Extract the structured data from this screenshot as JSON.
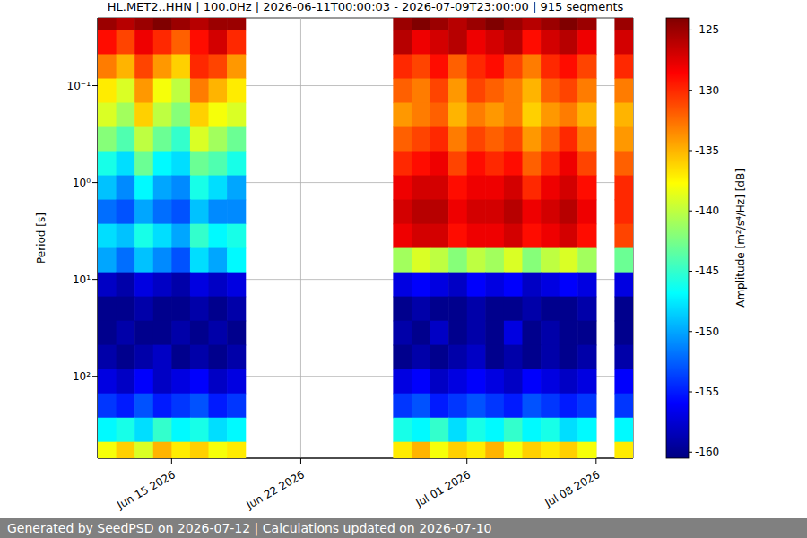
{
  "chart_data": {
    "type": "heatmap",
    "title": "HL.MET2..HHN | 100.0Hz | 2026-06-11T00:00:03 - 2026-07-09T23:00:00 | 915 segments",
    "y_label": "Period [s]",
    "footer": "Generated by SeedPSD on 2026-07-12 | Calculations updated on 2026-07-10",
    "log": "y",
    "grid": true,
    "xlim": [
      "2026-06-11",
      "2026-07-10"
    ],
    "xticks": [
      {
        "value": "2026-06-15",
        "label": "Jun 15 2026"
      },
      {
        "value": "2026-06-22",
        "label": "Jun 22 2026"
      },
      {
        "value": "2026-07-01",
        "label": "Jul 01 2026"
      },
      {
        "value": "2026-07-08",
        "label": "Jul 08 2026"
      }
    ],
    "ylim": [
      0.02,
      700
    ],
    "yticks": [
      {
        "value": 0.1,
        "label": "10⁻¹"
      },
      {
        "value": 1,
        "label": "10⁰"
      },
      {
        "value": 10,
        "label": "10¹"
      },
      {
        "value": 100,
        "label": "10²"
      }
    ],
    "colorbar": {
      "label": "Amplitude [m²/s⁴/Hz] [dB]",
      "range": [
        -160.5,
        -124
      ],
      "ticks": [
        -160,
        -155,
        -150,
        -145,
        -140,
        -135,
        -130,
        -125
      ]
    },
    "cells": {
      "x": [
        "2026-06-11",
        "2026-06-12",
        "2026-06-13",
        "2026-06-14",
        "2026-06-15",
        "2026-06-16",
        "2026-06-17",
        "2026-06-18",
        "2026-06-19",
        "2026-06-20",
        "2026-06-21",
        "2026-06-22",
        "2026-06-23",
        "2026-06-24",
        "2026-06-25",
        "2026-06-26",
        "2026-06-27",
        "2026-06-28",
        "2026-06-29",
        "2026-06-30",
        "2026-07-01",
        "2026-07-02",
        "2026-07-03",
        "2026-07-04",
        "2026-07-05",
        "2026-07-06",
        "2026-07-07",
        "2026-07-08",
        "2026-07-09"
      ],
      "periods": [
        0.02,
        0.0356,
        0.0632,
        0.1125,
        0.2,
        0.356,
        0.632,
        1.125,
        2,
        3.56,
        6.32,
        11.25,
        20,
        35.6,
        63.2,
        112.5,
        200,
        356,
        632
      ],
      "values": [
        [
          -125,
          -126,
          -125,
          -124,
          -125,
          -126,
          -125,
          -125,
          null,
          null,
          null,
          null,
          null,
          null,
          null,
          null,
          -125,
          -124,
          -125,
          -126,
          -125,
          -124,
          -125,
          -126,
          -125,
          -124,
          -125,
          null,
          -125
        ],
        [
          -129,
          -131,
          -128,
          -130,
          -132,
          -129,
          -127,
          -130,
          null,
          null,
          null,
          null,
          null,
          null,
          null,
          null,
          -126,
          -128,
          -127,
          -126,
          -128,
          -127,
          -126,
          -129,
          -127,
          -126,
          -128,
          null,
          -127
        ],
        [
          -133,
          -135,
          -131,
          -134,
          -136,
          -130,
          -131,
          -134,
          null,
          null,
          null,
          null,
          null,
          null,
          null,
          null,
          -130,
          -131,
          -129,
          -132,
          -130,
          -129,
          -131,
          -133,
          -130,
          -129,
          -131,
          null,
          -130
        ],
        [
          -137,
          -139,
          -134,
          -138,
          -140,
          -133,
          -135,
          -137,
          null,
          null,
          null,
          null,
          null,
          null,
          null,
          null,
          -132,
          -133,
          -131,
          -134,
          -131,
          -132,
          -133,
          -135,
          -132,
          -131,
          -133,
          null,
          -133
        ],
        [
          -139,
          -141,
          -136,
          -140,
          -142,
          -136,
          -138,
          -139,
          null,
          null,
          null,
          null,
          null,
          null,
          null,
          null,
          -134,
          -133,
          -132,
          -135,
          -133,
          -134,
          -133,
          -136,
          -134,
          -133,
          -135,
          null,
          -135
        ],
        [
          -142,
          -144,
          -140,
          -143,
          -145,
          -139,
          -141,
          -143,
          null,
          null,
          null,
          null,
          null,
          null,
          null,
          null,
          -132,
          -131,
          -130,
          -133,
          -131,
          -132,
          -131,
          -134,
          -132,
          -130,
          -133,
          null,
          -134
        ],
        [
          -146,
          -148,
          -143,
          -147,
          -148,
          -143,
          -144,
          -146,
          null,
          null,
          null,
          null,
          null,
          null,
          null,
          null,
          -130,
          -129,
          -128,
          -131,
          -129,
          -130,
          -129,
          -132,
          -130,
          -128,
          -131,
          null,
          -132
        ],
        [
          -149,
          -151,
          -147,
          -150,
          -151,
          -146,
          -148,
          -150,
          null,
          null,
          null,
          null,
          null,
          null,
          null,
          null,
          -128,
          -127,
          -127,
          -129,
          -128,
          -128,
          -127,
          -130,
          -128,
          -127,
          -129,
          null,
          -130
        ],
        [
          -152,
          -153,
          -150,
          -152,
          -153,
          -149,
          -151,
          -151,
          null,
          null,
          null,
          null,
          null,
          null,
          null,
          null,
          -127,
          -126,
          -126,
          -128,
          -127,
          -127,
          -126,
          -128,
          -127,
          -126,
          -128,
          null,
          -130
        ],
        [
          -148,
          -149,
          -146,
          -148,
          -150,
          -145,
          -147,
          -146,
          null,
          null,
          null,
          null,
          null,
          null,
          null,
          null,
          -128,
          -127,
          -127,
          -129,
          -128,
          -128,
          -127,
          -129,
          -128,
          -127,
          -129,
          null,
          -131
        ],
        [
          -150,
          -152,
          -149,
          -151,
          -153,
          -148,
          -150,
          -147,
          null,
          null,
          null,
          null,
          null,
          null,
          null,
          null,
          -141,
          -139,
          -140,
          -142,
          -140,
          -141,
          -139,
          -142,
          -140,
          -139,
          -141,
          null,
          -143
        ],
        [
          -158,
          -159,
          -157,
          -158,
          -159,
          -157,
          -158,
          -157,
          null,
          null,
          null,
          null,
          null,
          null,
          null,
          null,
          -157,
          -156,
          -157,
          -158,
          -156,
          -157,
          -156,
          -158,
          -157,
          -156,
          -157,
          null,
          -157
        ],
        [
          -160,
          -160,
          -159,
          -160,
          -160,
          -159,
          -160,
          -159,
          null,
          null,
          null,
          null,
          null,
          null,
          null,
          null,
          -160,
          -159,
          -160,
          -160,
          -159,
          -160,
          -160,
          -159,
          -160,
          -160,
          -159,
          null,
          -160
        ],
        [
          -160,
          -159,
          -160,
          -160,
          -159,
          -160,
          -159,
          -160,
          null,
          null,
          null,
          null,
          null,
          null,
          null,
          null,
          -159,
          -160,
          -158,
          -160,
          -159,
          -160,
          -157,
          -160,
          -159,
          -160,
          -160,
          null,
          -160
        ],
        [
          -159,
          -160,
          -159,
          -158,
          -160,
          -159,
          -160,
          -159,
          null,
          null,
          null,
          null,
          null,
          null,
          null,
          null,
          -160,
          -159,
          -160,
          -159,
          -158,
          -160,
          -159,
          -160,
          -159,
          -160,
          -159,
          null,
          -159
        ],
        [
          -157,
          -158,
          -156,
          -158,
          -157,
          -156,
          -158,
          -157,
          null,
          null,
          null,
          null,
          null,
          null,
          null,
          null,
          -157,
          -156,
          -158,
          -157,
          -156,
          -157,
          -158,
          -156,
          -157,
          -158,
          -157,
          null,
          -156
        ],
        [
          -154,
          -155,
          -153,
          -155,
          -154,
          -153,
          -155,
          -154,
          null,
          null,
          null,
          null,
          null,
          null,
          null,
          null,
          -154,
          -153,
          -155,
          -154,
          -153,
          -154,
          -155,
          -153,
          -154,
          -155,
          -154,
          null,
          -154
        ],
        [
          -147,
          -146,
          -148,
          -145,
          -147,
          -146,
          -148,
          -147,
          null,
          null,
          null,
          null,
          null,
          null,
          null,
          null,
          -146,
          -147,
          -145,
          -148,
          -146,
          -147,
          -145,
          -147,
          -146,
          -148,
          -147,
          null,
          -147
        ],
        [
          -138,
          -136,
          -139,
          -135,
          -137,
          -136,
          -138,
          -137,
          null,
          null,
          null,
          null,
          null,
          null,
          null,
          null,
          -137,
          -135,
          -138,
          -136,
          -137,
          -135,
          -138,
          -136,
          -137,
          -136,
          -138,
          null,
          -137
        ]
      ]
    }
  }
}
